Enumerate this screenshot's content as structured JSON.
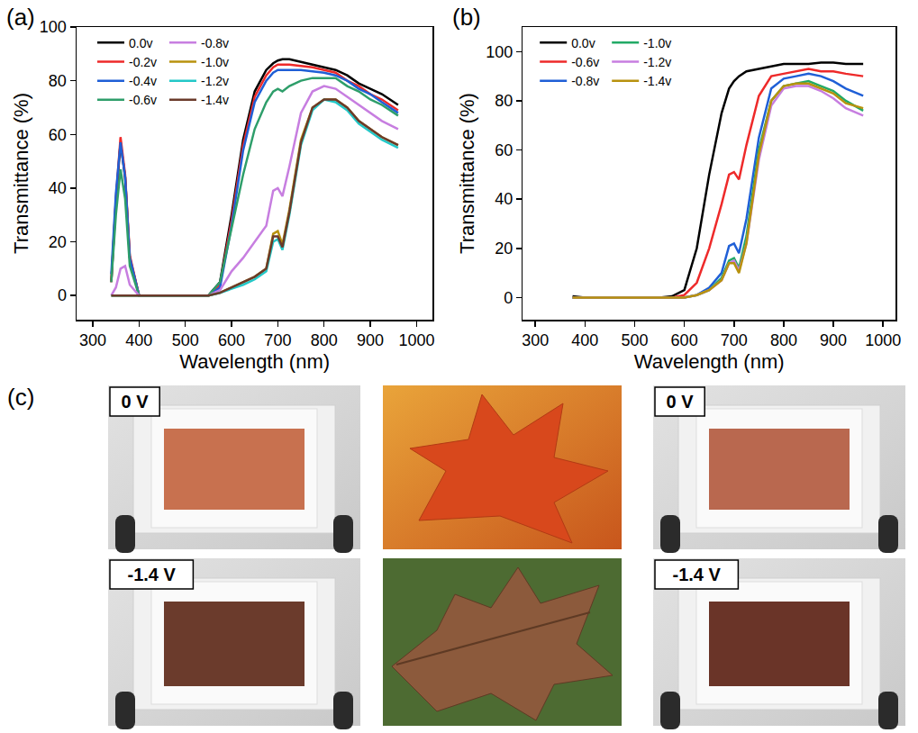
{
  "chart_data": [
    {
      "type": "line",
      "panel": "(a)",
      "x_label": "Wavelength (nm)",
      "y_label": "Transmittance (%)",
      "x": [
        340,
        350,
        360,
        370,
        380,
        400,
        420,
        450,
        500,
        550,
        575,
        600,
        625,
        650,
        675,
        690,
        700,
        710,
        725,
        750,
        775,
        800,
        825,
        850,
        875,
        900,
        925,
        960
      ],
      "series": [
        {
          "name": "0.0v",
          "color": "#000000",
          "values": [
            5,
            35,
            57,
            44,
            14,
            0,
            0,
            0,
            0,
            0,
            5,
            30,
            58,
            76,
            84,
            86.5,
            87.5,
            88,
            88,
            87,
            86,
            85,
            84,
            82,
            79,
            77,
            75,
            71
          ]
        },
        {
          "name": "-0.2v",
          "color": "#ee2a2a",
          "values": [
            5,
            36,
            59,
            45,
            15,
            0,
            0,
            0,
            0,
            0,
            4,
            28,
            56,
            74,
            82,
            85,
            86,
            86,
            86,
            85.5,
            85,
            84,
            83,
            80,
            78,
            75,
            73,
            69
          ]
        },
        {
          "name": "-0.4v",
          "color": "#1f5fd6",
          "values": [
            8,
            38,
            57,
            44,
            14,
            0,
            0,
            0,
            0,
            0,
            3,
            26,
            54,
            72,
            80,
            83,
            84,
            84,
            84,
            84,
            83.5,
            83,
            82,
            80,
            77,
            75,
            72,
            68
          ]
        },
        {
          "name": "-0.6v",
          "color": "#2e9e6a",
          "values": [
            5,
            30,
            47,
            36,
            11,
            0,
            0,
            0,
            0,
            0,
            5,
            25,
            45,
            62,
            72,
            76,
            77,
            76,
            78,
            80,
            81,
            81,
            81,
            78,
            76,
            73,
            71,
            67
          ]
        },
        {
          "name": "-0.8v",
          "color": "#c77ee0",
          "values": [
            0,
            3,
            10,
            11,
            4,
            0,
            0,
            0,
            0,
            0,
            2,
            9,
            14,
            20,
            26,
            39,
            40,
            37,
            48,
            68,
            76,
            78,
            77,
            74,
            71,
            68,
            65,
            62
          ]
        },
        {
          "name": "-1.0v",
          "color": "#b8920e",
          "values": [
            0,
            0,
            0,
            0,
            0,
            0,
            0,
            0,
            0,
            0,
            1,
            3,
            5,
            7,
            10,
            23,
            24,
            19,
            32,
            58,
            70,
            73,
            73,
            70,
            65,
            62,
            59,
            56
          ]
        },
        {
          "name": "-1.2v",
          "color": "#23c8c8",
          "values": [
            0,
            0,
            0,
            0,
            0,
            0,
            0,
            0,
            0,
            0,
            1,
            2.5,
            4,
            6,
            9,
            20,
            21,
            17,
            30,
            56,
            69,
            73,
            72,
            69,
            64,
            61,
            58,
            55
          ]
        },
        {
          "name": "-1.4v",
          "color": "#6b3a2a",
          "values": [
            0,
            0,
            0,
            0,
            0,
            0,
            0,
            0,
            0,
            0,
            1,
            3,
            5,
            7,
            10,
            22,
            22,
            18,
            31,
            57,
            70,
            73,
            73,
            70,
            65,
            62,
            59,
            56
          ]
        }
      ],
      "xlim": [
        265,
        1035
      ],
      "xticks": [
        300,
        400,
        500,
        600,
        700,
        800,
        900,
        1000
      ],
      "ylim": [
        -9,
        100
      ],
      "yticks": [
        0,
        20,
        40,
        60,
        80,
        100
      ],
      "grid": false,
      "legend": "upper left"
    },
    {
      "type": "line",
      "panel": "(b)",
      "x_label": "Wavelength (nm)",
      "y_label": "Transmittance (%)",
      "x": [
        375,
        400,
        450,
        500,
        550,
        575,
        600,
        625,
        650,
        675,
        690,
        700,
        710,
        725,
        750,
        775,
        800,
        825,
        850,
        875,
        900,
        925,
        960
      ],
      "series": [
        {
          "name": "0.0v",
          "color": "#000000",
          "values": [
            0.5,
            0,
            0,
            0,
            0,
            0.5,
            3,
            20,
            50,
            75,
            85,
            88,
            90,
            92,
            93,
            94,
            95,
            95,
            95,
            95.5,
            95.5,
            95,
            95
          ]
        },
        {
          "name": "-0.6v",
          "color": "#ee2a2a",
          "values": [
            0,
            0,
            0,
            0,
            0,
            0,
            1,
            6,
            20,
            38,
            50,
            51,
            48,
            62,
            82,
            90,
            91,
            92,
            93,
            92,
            92,
            91,
            90
          ]
        },
        {
          "name": "-0.8v",
          "color": "#1f5fd6",
          "values": [
            0,
            0,
            0,
            0,
            0,
            0,
            0,
            1,
            4,
            10,
            21,
            22,
            18,
            32,
            65,
            85,
            89,
            90,
            91,
            90,
            88,
            85,
            82
          ]
        },
        {
          "name": "-1.0v",
          "color": "#22aa66",
          "values": [
            0,
            0,
            0,
            0,
            0,
            0,
            0,
            1,
            3,
            8,
            15,
            16,
            12,
            25,
            60,
            80,
            86,
            87,
            88,
            86,
            84,
            80,
            76
          ]
        },
        {
          "name": "-1.2v",
          "color": "#c77ee0",
          "values": [
            0,
            0,
            0,
            0,
            0,
            0,
            0,
            1,
            3,
            7,
            14,
            15,
            11,
            22,
            56,
            78,
            85,
            86,
            86,
            84,
            81,
            77,
            74
          ]
        },
        {
          "name": "-1.4v",
          "color": "#b8920e",
          "values": [
            0,
            0,
            0,
            0,
            0,
            0,
            0,
            1,
            3,
            7,
            14,
            14,
            10,
            22,
            58,
            80,
            86,
            87,
            87,
            85,
            83,
            79,
            77
          ]
        }
      ],
      "xlim": [
        275,
        1025
      ],
      "xticks": [
        300,
        400,
        500,
        600,
        700,
        800,
        900,
        1000
      ],
      "ylim": [
        -9,
        110
      ],
      "yticks": [
        0,
        20,
        40,
        60,
        80,
        100
      ],
      "grid": false,
      "legend": "upper left"
    }
  ],
  "photo_panel": {
    "panel": "(c)",
    "left_labels": [
      "0 V",
      "-1.4 V"
    ],
    "right_labels": [
      "0 V",
      "-1.4 V"
    ]
  }
}
